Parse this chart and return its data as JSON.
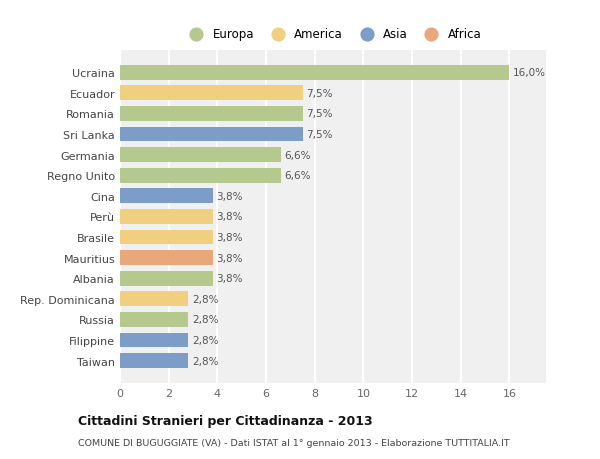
{
  "countries": [
    "Ucraina",
    "Ecuador",
    "Romania",
    "Sri Lanka",
    "Germania",
    "Regno Unito",
    "Cina",
    "Perù",
    "Brasile",
    "Mauritius",
    "Albania",
    "Rep. Dominicana",
    "Russia",
    "Filippine",
    "Taiwan"
  ],
  "values": [
    16.0,
    7.5,
    7.5,
    7.5,
    6.6,
    6.6,
    3.8,
    3.8,
    3.8,
    3.8,
    3.8,
    2.8,
    2.8,
    2.8,
    2.8
  ],
  "labels": [
    "16,0%",
    "7,5%",
    "7,5%",
    "7,5%",
    "6,6%",
    "6,6%",
    "3,8%",
    "3,8%",
    "3,8%",
    "3,8%",
    "3,8%",
    "2,8%",
    "2,8%",
    "2,8%",
    "2,8%"
  ],
  "continents": [
    "Europa",
    "America",
    "Europa",
    "Asia",
    "Europa",
    "Europa",
    "Asia",
    "America",
    "America",
    "Africa",
    "Europa",
    "America",
    "Europa",
    "Asia",
    "Asia"
  ],
  "continent_colors": {
    "Europa": "#b5c98e",
    "America": "#f0d080",
    "Asia": "#7b9dc8",
    "Africa": "#e8a87c"
  },
  "bar_height": 0.72,
  "xlim": [
    0,
    17.5
  ],
  "xticks": [
    0,
    2,
    4,
    6,
    8,
    10,
    12,
    14,
    16
  ],
  "title": "Cittadini Stranieri per Cittadinanza - 2013",
  "subtitle": "COMUNE DI BUGUGGIATE (VA) - Dati ISTAT al 1° gennaio 2013 - Elaborazione TUTTITALIA.IT",
  "legend_order": [
    "Europa",
    "America",
    "Asia",
    "Africa"
  ],
  "background_color": "#ffffff",
  "grid_color": "#ffffff",
  "axes_background": "#f0f0f0"
}
